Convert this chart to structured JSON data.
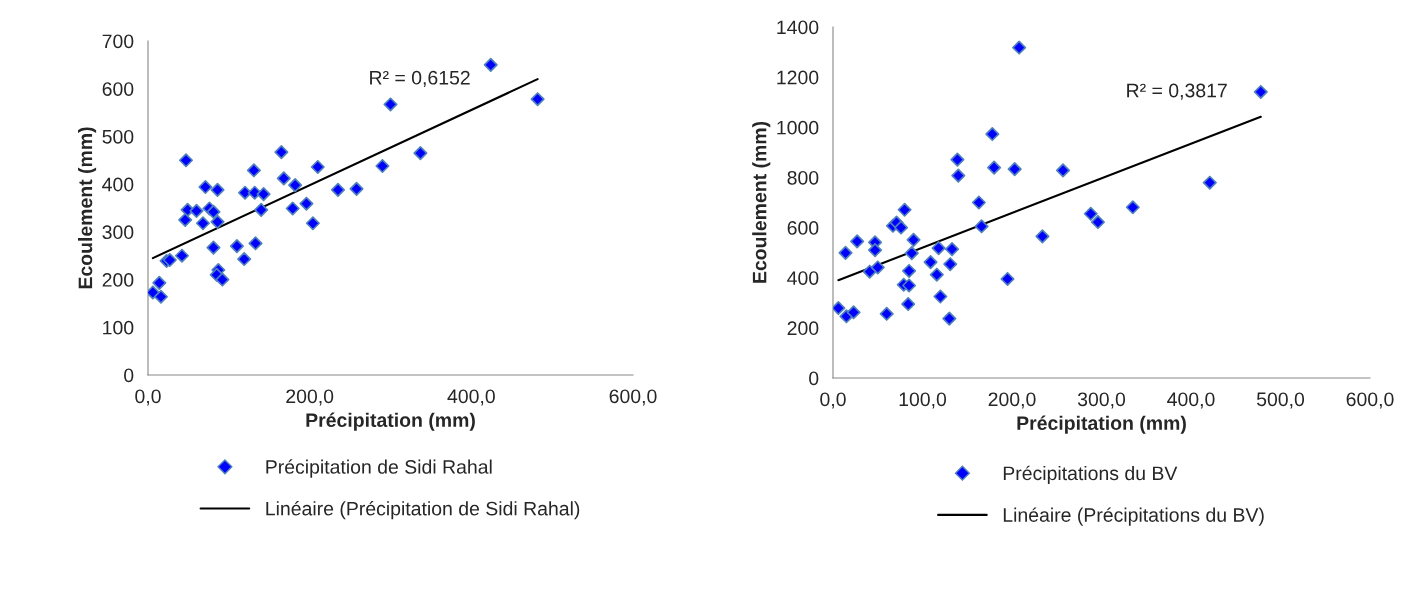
{
  "chart_data": [
    {
      "type": "scatter",
      "xlabel": "Précipitation (mm)",
      "ylabel": "Ecoulement (mm)",
      "annotations": [
        "R² = 0,6152"
      ],
      "xlim": [
        0,
        600
      ],
      "xticks": [
        {
          "value": 0,
          "label": "0,0"
        },
        {
          "value": 200,
          "label": "200,0"
        },
        {
          "value": 400,
          "label": "400,0"
        },
        {
          "value": 600,
          "label": "600,0"
        }
      ],
      "ylim": [
        0,
        700
      ],
      "yticks": [
        0,
        100,
        200,
        300,
        400,
        500,
        600,
        700
      ],
      "grid": false,
      "legend": "bottom",
      "series": [
        {
          "name": "Précipitation de Sidi Rahal",
          "type": "scatter",
          "marker": "diamond",
          "color": "#0000ff",
          "x": [
            6,
            14,
            16,
            23,
            27,
            42,
            47,
            49,
            46,
            60,
            71,
            86,
            68,
            76,
            81,
            86,
            81,
            87,
            85,
            92,
            110,
            119,
            133,
            120,
            132,
            143,
            131,
            140,
            165,
            168,
            182,
            179,
            196,
            204,
            210,
            235,
            258,
            337,
            290,
            300,
            424,
            482
          ],
          "values": [
            173,
            193,
            164,
            239,
            241,
            250,
            450,
            346,
            325,
            344,
            394,
            388,
            318,
            349,
            342,
            321,
            267,
            220,
            210,
            200,
            270,
            243,
            276,
            382,
            382,
            379,
            429,
            346,
            467,
            412,
            398,
            349,
            359,
            318,
            436,
            388,
            390,
            465,
            438,
            567,
            650,
            578
          ]
        },
        {
          "name": "Linéaire (Précipitation de Sidi Rahal)",
          "type": "line",
          "color": "#000000",
          "line_style": "solid",
          "x": [
            6,
            482
          ],
          "values": [
            245,
            620
          ]
        }
      ]
    },
    {
      "type": "scatter",
      "xlabel": "Précipitation (mm)",
      "ylabel": "Ecoulement (mm)",
      "annotations": [
        "R² = 0,3817"
      ],
      "xlim": [
        0,
        600
      ],
      "xticks": [
        {
          "value": 0,
          "label": "0,0"
        },
        {
          "value": 100,
          "label": "100,0"
        },
        {
          "value": 200,
          "label": "200,0"
        },
        {
          "value": 300,
          "label": "300,0"
        },
        {
          "value": 400,
          "label": "400,0"
        },
        {
          "value": 500,
          "label": "500,0"
        },
        {
          "value": 600,
          "label": "600,0"
        }
      ],
      "ylim": [
        0,
        1400
      ],
      "yticks": [
        0,
        200,
        400,
        600,
        800,
        1000,
        1200,
        1400
      ],
      "grid": false,
      "legend": "bottom",
      "series": [
        {
          "name": "Précipitations du BV",
          "type": "scatter",
          "marker": "diamond",
          "color": "#0000ff",
          "x": [
            6,
            15,
            23,
            14,
            27,
            47,
            47,
            41,
            50,
            60,
            67,
            71,
            76,
            80,
            90,
            88,
            85,
            79,
            85,
            84,
            109,
            118,
            116,
            120,
            133,
            131,
            130,
            139,
            140,
            163,
            166,
            180,
            178,
            203,
            195,
            234,
            257,
            208,
            288,
            296,
            335,
            421,
            478
          ],
          "values": [
            279,
            246,
            262,
            499,
            545,
            541,
            510,
            424,
            441,
            256,
            607,
            620,
            600,
            671,
            551,
            498,
            427,
            372,
            369,
            295,
            462,
            518,
            412,
            325,
            514,
            454,
            237,
            871,
            807,
            700,
            605,
            839,
            973,
            833,
            395,
            565,
            828,
            1318,
            655,
            622,
            681,
            779,
            1141
          ]
        },
        {
          "name": "Linéaire (Précipitations du BV)",
          "type": "line",
          "color": "#000000",
          "line_style": "solid",
          "x": [
            6,
            478
          ],
          "values": [
            390,
            1042
          ]
        }
      ]
    }
  ]
}
